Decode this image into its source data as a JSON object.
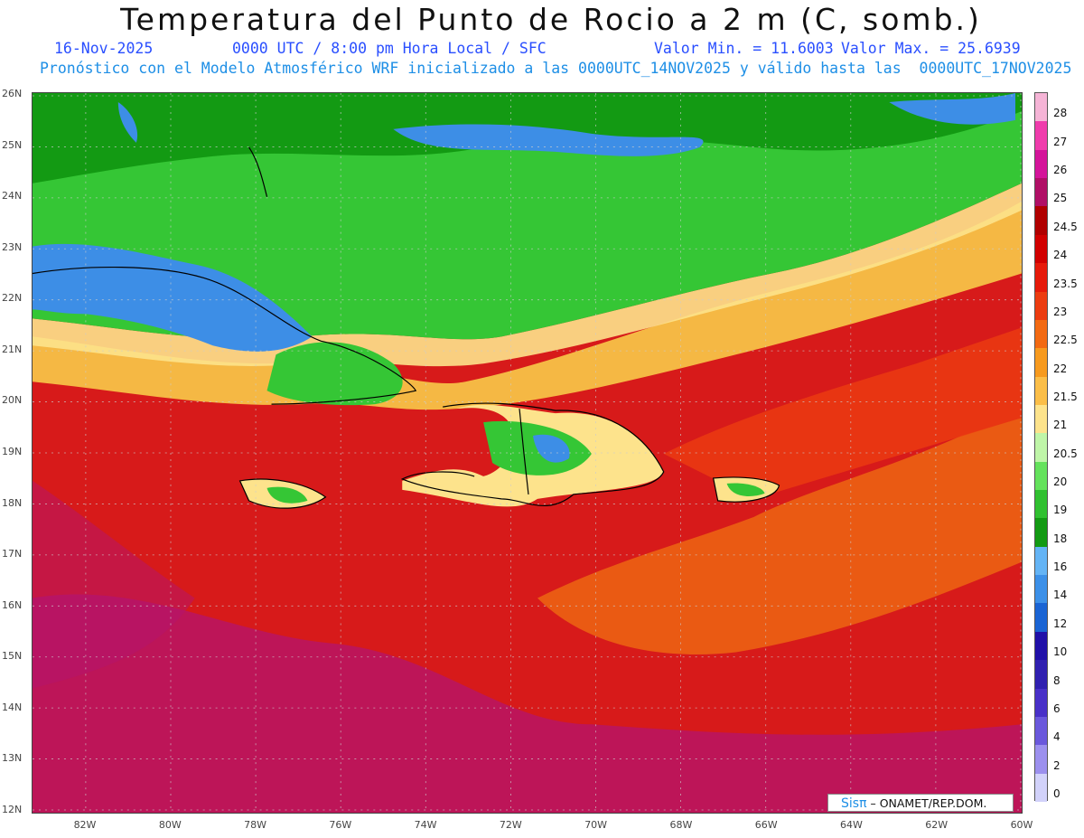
{
  "header": {
    "title": "Temperatura del Punto de Rocio a 2 m (C, somb.)",
    "date": "16-Nov-2025",
    "time": "0000 UTC / 8:00 pm Hora Local / SFC",
    "min": "Valor Min. = 11.6003",
    "max": "Valor Max. = 25.6939",
    "forecast": "Pronóstico con el Modelo Atmosférico WRF inicializado a las 0000UTC_14NOV2025 y válido hasta las  0000UTC_17NOV2025"
  },
  "map": {
    "lat_labels": [
      "26N",
      "25N",
      "24N",
      "23N",
      "22N",
      "21N",
      "20N",
      "19N",
      "18N",
      "17N",
      "16N",
      "15N",
      "14N",
      "13N",
      "12N"
    ],
    "lon_labels": [
      "82W",
      "80W",
      "78W",
      "76W",
      "74W",
      "72W",
      "70W",
      "68W",
      "66W",
      "64W",
      "62W",
      "60W"
    ],
    "lat_range": [
      12,
      26
    ],
    "lon_range": [
      -83.3,
      -60
    ],
    "grid": true,
    "colors": {
      "ocean_warm": "#d71a1a",
      "ocean_hot": "#b4146e",
      "land_cool": "#35c635",
      "land_cold": "#3d8ee6",
      "transition": "#f5b844",
      "orange": "#ef6a12"
    }
  },
  "colorbar": {
    "labels": [
      "28",
      "27",
      "26",
      "25",
      "24.5",
      "24",
      "23.5",
      "23",
      "22.5",
      "22",
      "21.5",
      "21",
      "20.5",
      "20",
      "19",
      "18",
      "16",
      "14",
      "12",
      "10",
      "8",
      "6",
      "4",
      "2",
      "0"
    ],
    "colors": [
      "#f5b4d6",
      "#ef3cac",
      "#d4149a",
      "#b00f66",
      "#b00000",
      "#d10000",
      "#e61a0a",
      "#ec3c10",
      "#f36a12",
      "#f79a1e",
      "#fbbe48",
      "#fde38c",
      "#bff5a8",
      "#64e25c",
      "#30c030",
      "#139a13",
      "#64b4f5",
      "#3c90e8",
      "#1a64d4",
      "#2010a8",
      "#3020b0",
      "#4830c8",
      "#6a58dc",
      "#9c90ee",
      "#d2d2fa"
    ]
  },
  "credit": {
    "brand": "Sisπ",
    "text": " – ONAMET/REP.DOM."
  }
}
